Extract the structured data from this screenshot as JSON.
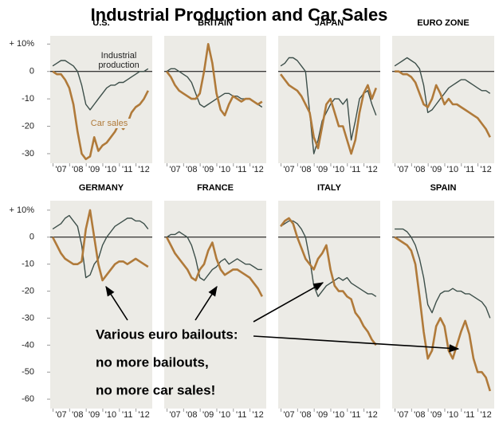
{
  "title": "Industrial Production and Car Sales",
  "annotation": [
    "Various euro bailouts:",
    "no more bailouts,",
    "no more car sales!"
  ],
  "chart_data": [
    {
      "type": "line",
      "title": "U.S.",
      "x": [
        2007,
        2007.25,
        2007.5,
        2007.75,
        2008,
        2008.25,
        2008.5,
        2008.75,
        2009,
        2009.25,
        2009.5,
        2009.75,
        2010,
        2010.25,
        2010.5,
        2010.75,
        2011,
        2011.25,
        2011.5,
        2011.75,
        2012,
        2012.25,
        2012.5,
        2012.75
      ],
      "xlim": [
        2006.85,
        2013
      ],
      "xticks": [
        {
          "value": 2007.5,
          "label": "'07"
        },
        {
          "value": 2008.5,
          "label": "'08"
        },
        {
          "value": 2009.5,
          "label": "'09"
        },
        {
          "value": 2010.5,
          "label": "'10"
        },
        {
          "value": 2011.5,
          "label": "'11"
        },
        {
          "value": 2012.5,
          "label": "'12"
        }
      ],
      "ylim": [
        -33.5,
        13
      ],
      "yticks": [
        {
          "value": 10,
          "label": "+ 10%"
        },
        0,
        -10,
        -20,
        -30
      ],
      "series": [
        {
          "name": "Industrial production",
          "color": "#3d4f4a",
          "values": [
            2,
            3,
            4,
            4,
            3,
            2,
            0,
            -5,
            -12,
            -14,
            -12,
            -10,
            -8,
            -6,
            -5,
            -5,
            -4,
            -4,
            -3,
            -2,
            -1,
            0,
            0,
            1
          ]
        },
        {
          "name": "Car sales",
          "color": "#b07a3a",
          "values": [
            0,
            -1,
            -1,
            -3,
            -6,
            -12,
            -22,
            -30,
            -32,
            -31,
            -24,
            -29,
            -27,
            -26,
            -24,
            -22,
            -19,
            -21,
            -19,
            -15,
            -13,
            -12,
            -10,
            -7
          ]
        }
      ]
    },
    {
      "type": "line",
      "title": "BRITAIN",
      "x": [
        2007,
        2007.25,
        2007.5,
        2007.75,
        2008,
        2008.25,
        2008.5,
        2008.75,
        2009,
        2009.25,
        2009.5,
        2009.75,
        2010,
        2010.25,
        2010.5,
        2010.75,
        2011,
        2011.25,
        2011.5,
        2011.75,
        2012,
        2012.25,
        2012.5,
        2012.75
      ],
      "xlim": [
        2006.85,
        2013
      ],
      "xticks": [
        {
          "value": 2007.5,
          "label": "'07"
        },
        {
          "value": 2008.5,
          "label": "'08"
        },
        {
          "value": 2009.5,
          "label": "'09"
        },
        {
          "value": 2010.5,
          "label": "'10"
        },
        {
          "value": 2011.5,
          "label": "'11"
        },
        {
          "value": 2012.5,
          "label": "'12"
        }
      ],
      "ylim": [
        -33.5,
        13
      ],
      "series": [
        {
          "color": "#3d4f4a",
          "values": [
            0,
            1,
            1,
            0,
            -1,
            -2,
            -4,
            -8,
            -12,
            -13,
            -12,
            -11,
            -10,
            -9,
            -8,
            -8,
            -9,
            -9,
            -10,
            -10,
            -10,
            -11,
            -12,
            -13
          ]
        },
        {
          "color": "#b07a3a",
          "values": [
            0,
            -2,
            -5,
            -7,
            -8,
            -9,
            -10,
            -10,
            -8,
            0,
            10,
            3,
            -8,
            -14,
            -16,
            -12,
            -9,
            -10,
            -11,
            -10,
            -10,
            -11,
            -12,
            -11
          ]
        }
      ]
    },
    {
      "type": "line",
      "title": "JAPAN",
      "x": [
        2007,
        2007.25,
        2007.5,
        2007.75,
        2008,
        2008.25,
        2008.5,
        2008.75,
        2009,
        2009.25,
        2009.5,
        2009.75,
        2010,
        2010.25,
        2010.5,
        2010.75,
        2011,
        2011.25,
        2011.5,
        2011.75,
        2012,
        2012.25,
        2012.5,
        2012.75
      ],
      "xlim": [
        2006.85,
        2013
      ],
      "xticks": [
        {
          "value": 2007.5,
          "label": "'07"
        },
        {
          "value": 2008.5,
          "label": "'08"
        },
        {
          "value": 2009.5,
          "label": "'09"
        },
        {
          "value": 2010.5,
          "label": "'10"
        },
        {
          "value": 2011.5,
          "label": "'11"
        },
        {
          "value": 2012.5,
          "label": "'12"
        }
      ],
      "ylim": [
        -33.5,
        13
      ],
      "series": [
        {
          "color": "#3d4f4a",
          "values": [
            2,
            3,
            5,
            5,
            4,
            2,
            0,
            -15,
            -30,
            -25,
            -18,
            -15,
            -12,
            -10,
            -10,
            -12,
            -10,
            -25,
            -18,
            -10,
            -8,
            -7,
            -12,
            -16
          ]
        },
        {
          "color": "#b07a3a",
          "values": [
            -1,
            -3,
            -5,
            -6,
            -7,
            -9,
            -12,
            -15,
            -24,
            -28,
            -20,
            -12,
            -10,
            -15,
            -20,
            -20,
            -25,
            -30,
            -25,
            -15,
            -8,
            -5,
            -10,
            -6
          ]
        }
      ]
    },
    {
      "type": "line",
      "title": "EURO ZONE",
      "x": [
        2007,
        2007.25,
        2007.5,
        2007.75,
        2008,
        2008.25,
        2008.5,
        2008.75,
        2009,
        2009.25,
        2009.5,
        2009.75,
        2010,
        2010.25,
        2010.5,
        2010.75,
        2011,
        2011.25,
        2011.5,
        2011.75,
        2012,
        2012.25,
        2012.5,
        2012.75
      ],
      "xlim": [
        2006.85,
        2013
      ],
      "xticks": [
        {
          "value": 2007.5,
          "label": "'07"
        },
        {
          "value": 2008.5,
          "label": "'08"
        },
        {
          "value": 2009.5,
          "label": "'09"
        },
        {
          "value": 2010.5,
          "label": "'10"
        },
        {
          "value": 2011.5,
          "label": "'11"
        },
        {
          "value": 2012.5,
          "label": "'12"
        }
      ],
      "ylim": [
        -33.5,
        13
      ],
      "series": [
        {
          "color": "#3d4f4a",
          "values": [
            2,
            3,
            4,
            5,
            4,
            3,
            1,
            -5,
            -15,
            -14,
            -12,
            -10,
            -8,
            -6,
            -5,
            -4,
            -3,
            -3,
            -4,
            -5,
            -6,
            -7,
            -7,
            -8
          ]
        },
        {
          "color": "#b07a3a",
          "values": [
            0,
            0,
            -1,
            -1,
            -2,
            -4,
            -8,
            -12,
            -13,
            -10,
            -5,
            -8,
            -12,
            -10,
            -12,
            -12,
            -13,
            -14,
            -15,
            -16,
            -17,
            -19,
            -21,
            -24
          ]
        }
      ]
    },
    {
      "type": "line",
      "title": "GERMANY",
      "x": [
        2007,
        2007.25,
        2007.5,
        2007.75,
        2008,
        2008.25,
        2008.5,
        2008.75,
        2009,
        2009.25,
        2009.5,
        2009.75,
        2010,
        2010.25,
        2010.5,
        2010.75,
        2011,
        2011.25,
        2011.5,
        2011.75,
        2012,
        2012.25,
        2012.5,
        2012.75
      ],
      "xlim": [
        2006.85,
        2013
      ],
      "xticks": [
        {
          "value": 2007.5,
          "label": "'07"
        },
        {
          "value": 2008.5,
          "label": "'08"
        },
        {
          "value": 2009.5,
          "label": "'09"
        },
        {
          "value": 2010.5,
          "label": "'10"
        },
        {
          "value": 2011.5,
          "label": "'11"
        },
        {
          "value": 2012.5,
          "label": "'12"
        }
      ],
      "ylim": [
        -63.5,
        13.5
      ],
      "yticks": [
        {
          "value": 10,
          "label": "+ 10%"
        },
        0,
        -10,
        -20,
        -30,
        -40,
        -50,
        -60
      ],
      "series": [
        {
          "color": "#3d4f4a",
          "values": [
            3,
            4,
            5,
            7,
            8,
            6,
            4,
            -3,
            -15,
            -14,
            -10,
            -8,
            -3,
            0,
            2,
            4,
            5,
            6,
            7,
            7,
            6,
            6,
            5,
            3
          ]
        },
        {
          "color": "#b07a3a",
          "values": [
            0,
            -3,
            -6,
            -8,
            -9,
            -10,
            -10,
            -9,
            3,
            10,
            0,
            -10,
            -16,
            -14,
            -12,
            -10,
            -9,
            -9,
            -10,
            -9,
            -8,
            -9,
            -10,
            -11
          ]
        }
      ]
    },
    {
      "type": "line",
      "title": "FRANCE",
      "x": [
        2007,
        2007.25,
        2007.5,
        2007.75,
        2008,
        2008.25,
        2008.5,
        2008.75,
        2009,
        2009.25,
        2009.5,
        2009.75,
        2010,
        2010.25,
        2010.5,
        2010.75,
        2011,
        2011.25,
        2011.5,
        2011.75,
        2012,
        2012.25,
        2012.5,
        2012.75
      ],
      "xlim": [
        2006.85,
        2013
      ],
      "xticks": [
        {
          "value": 2007.5,
          "label": "'07"
        },
        {
          "value": 2008.5,
          "label": "'08"
        },
        {
          "value": 2009.5,
          "label": "'09"
        },
        {
          "value": 2010.5,
          "label": "'10"
        },
        {
          "value": 2011.5,
          "label": "'11"
        },
        {
          "value": 2012.5,
          "label": "'12"
        }
      ],
      "ylim": [
        -63.5,
        13.5
      ],
      "series": [
        {
          "color": "#3d4f4a",
          "values": [
            0,
            1,
            1,
            2,
            1,
            0,
            -3,
            -8,
            -15,
            -16,
            -14,
            -12,
            -11,
            -9,
            -8,
            -10,
            -9,
            -8,
            -9,
            -10,
            -10,
            -11,
            -12,
            -12
          ]
        },
        {
          "color": "#b07a3a",
          "values": [
            0,
            -3,
            -6,
            -8,
            -10,
            -12,
            -15,
            -16,
            -12,
            -10,
            -5,
            -2,
            -8,
            -12,
            -14,
            -13,
            -12,
            -12,
            -13,
            -14,
            -15,
            -17,
            -19,
            -22
          ]
        }
      ]
    },
    {
      "type": "line",
      "title": "ITALY",
      "x": [
        2007,
        2007.25,
        2007.5,
        2007.75,
        2008,
        2008.25,
        2008.5,
        2008.75,
        2009,
        2009.25,
        2009.5,
        2009.75,
        2010,
        2010.25,
        2010.5,
        2010.75,
        2011,
        2011.25,
        2011.5,
        2011.75,
        2012,
        2012.25,
        2012.5,
        2012.75
      ],
      "xlim": [
        2006.85,
        2013
      ],
      "xticks": [
        {
          "value": 2007.5,
          "label": "'07"
        },
        {
          "value": 2008.5,
          "label": "'08"
        },
        {
          "value": 2009.5,
          "label": "'09"
        },
        {
          "value": 2010.5,
          "label": "'10"
        },
        {
          "value": 2011.5,
          "label": "'11"
        },
        {
          "value": 2012.5,
          "label": "'12"
        }
      ],
      "ylim": [
        -63.5,
        13.5
      ],
      "series": [
        {
          "color": "#3d4f4a",
          "values": [
            4,
            5,
            6,
            6,
            5,
            3,
            0,
            -8,
            -18,
            -22,
            -20,
            -18,
            -17,
            -16,
            -15,
            -16,
            -15,
            -17,
            -18,
            -19,
            -20,
            -21,
            -21,
            -22
          ]
        },
        {
          "color": "#b07a3a",
          "values": [
            4,
            6,
            7,
            5,
            0,
            -4,
            -8,
            -10,
            -12,
            -8,
            -6,
            -3,
            -12,
            -18,
            -20,
            -20,
            -22,
            -23,
            -28,
            -30,
            -33,
            -35,
            -38,
            -40
          ]
        }
      ]
    },
    {
      "type": "line",
      "title": "SPAIN",
      "x": [
        2007,
        2007.25,
        2007.5,
        2007.75,
        2008,
        2008.25,
        2008.5,
        2008.75,
        2009,
        2009.25,
        2009.5,
        2009.75,
        2010,
        2010.25,
        2010.5,
        2010.75,
        2011,
        2011.25,
        2011.5,
        2011.75,
        2012,
        2012.25,
        2012.5,
        2012.75
      ],
      "xlim": [
        2006.85,
        2013
      ],
      "xticks": [
        {
          "value": 2007.5,
          "label": "'07"
        },
        {
          "value": 2008.5,
          "label": "'08"
        },
        {
          "value": 2009.5,
          "label": "'09"
        },
        {
          "value": 2010.5,
          "label": "'10"
        },
        {
          "value": 2011.5,
          "label": "'11"
        },
        {
          "value": 2012.5,
          "label": "'12"
        }
      ],
      "ylim": [
        -63.5,
        13.5
      ],
      "series": [
        {
          "color": "#3d4f4a",
          "values": [
            3,
            3,
            3,
            2,
            0,
            -3,
            -8,
            -15,
            -25,
            -28,
            -24,
            -21,
            -20,
            -20,
            -19,
            -20,
            -20,
            -21,
            -21,
            -22,
            -23,
            -24,
            -26,
            -30
          ]
        },
        {
          "color": "#b07a3a",
          "values": [
            0,
            -1,
            -2,
            -3,
            -5,
            -10,
            -22,
            -35,
            -45,
            -42,
            -33,
            -30,
            -33,
            -42,
            -45,
            -40,
            -35,
            -31,
            -36,
            -45,
            -50,
            -50,
            -52,
            -57
          ]
        }
      ]
    }
  ]
}
